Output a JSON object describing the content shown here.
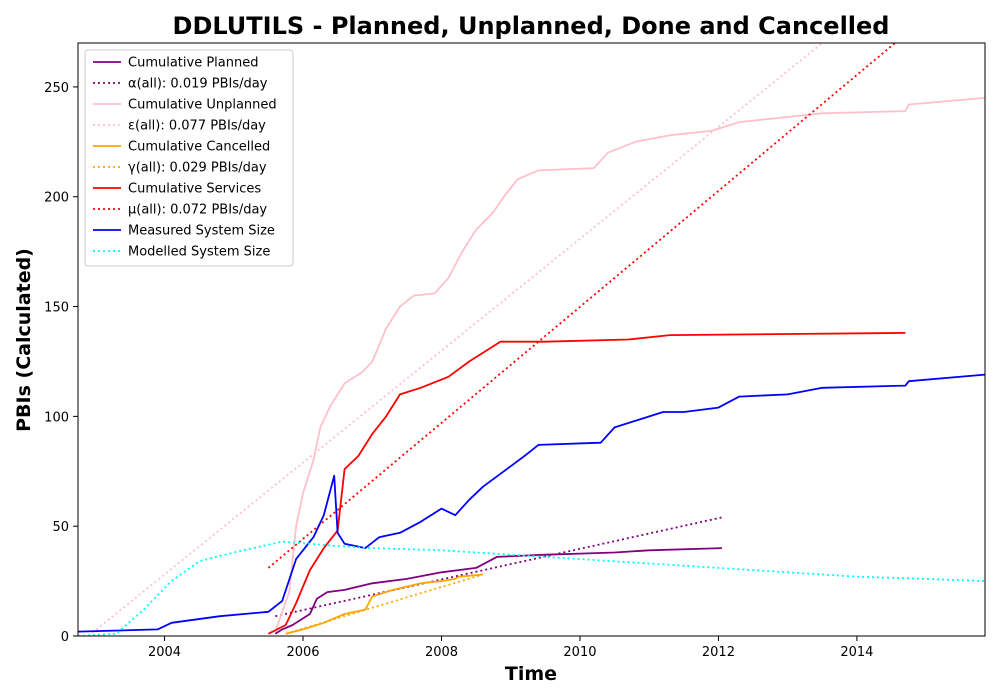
{
  "chart_data": {
    "type": "line",
    "title": "DDLUTILS - Planned, Unplanned, Done  and Cancelled",
    "xlabel": "Time",
    "ylabel": "PBIs (Calculated)",
    "xlim": [
      2002.75,
      2015.85
    ],
    "ylim": [
      0,
      270
    ],
    "x_ticks": [
      2004,
      2006,
      2008,
      2010,
      2012,
      2014
    ],
    "y_ticks": [
      0,
      50,
      100,
      150,
      200,
      250
    ],
    "grid": false,
    "legend": "top-left",
    "series": [
      {
        "name": "Cumulative Planned",
        "color": "#800080",
        "style": "solid",
        "points": [
          [
            2005.6,
            1
          ],
          [
            2005.7,
            3
          ],
          [
            2005.85,
            5
          ],
          [
            2006.0,
            8
          ],
          [
            2006.1,
            10
          ],
          [
            2006.2,
            17
          ],
          [
            2006.35,
            20
          ],
          [
            2006.6,
            21
          ],
          [
            2007.0,
            24
          ],
          [
            2007.5,
            26
          ],
          [
            2008.0,
            29
          ],
          [
            2008.5,
            31
          ],
          [
            2008.8,
            36
          ],
          [
            2009.5,
            37
          ],
          [
            2010.0,
            37.5
          ],
          [
            2010.5,
            38
          ],
          [
            2011.0,
            39
          ],
          [
            2012.05,
            40
          ]
        ]
      },
      {
        "name": "α(all): 0.019 PBIs/day",
        "color": "#800080",
        "style": "dotted",
        "points": [
          [
            2005.6,
            9
          ],
          [
            2012.05,
            54
          ]
        ]
      },
      {
        "name": "Cumulative Unplanned",
        "color": "#ffc0cb",
        "style": "solid",
        "points": [
          [
            2005.6,
            2
          ],
          [
            2005.8,
            20
          ],
          [
            2005.9,
            50
          ],
          [
            2006.0,
            65
          ],
          [
            2006.15,
            80
          ],
          [
            2006.25,
            95
          ],
          [
            2006.4,
            105
          ],
          [
            2006.6,
            115
          ],
          [
            2006.85,
            120
          ],
          [
            2007.0,
            125
          ],
          [
            2007.2,
            140
          ],
          [
            2007.4,
            150
          ],
          [
            2007.6,
            155
          ],
          [
            2007.9,
            156
          ],
          [
            2008.1,
            163
          ],
          [
            2008.3,
            175
          ],
          [
            2008.5,
            185
          ],
          [
            2008.75,
            193
          ],
          [
            2008.9,
            200
          ],
          [
            2009.1,
            208
          ],
          [
            2009.4,
            212
          ],
          [
            2010.2,
            213
          ],
          [
            2010.4,
            220
          ],
          [
            2010.8,
            225
          ],
          [
            2011.3,
            228
          ],
          [
            2011.9,
            230
          ],
          [
            2012.3,
            234
          ],
          [
            2012.9,
            236
          ],
          [
            2013.5,
            238
          ],
          [
            2014.7,
            239
          ],
          [
            2014.75,
            242
          ],
          [
            2015.85,
            245
          ]
        ]
      },
      {
        "name": "ε(all): 0.077 PBIs/day",
        "color": "#ffc0cb",
        "style": "dotted",
        "points": [
          [
            2002.9,
            0
          ],
          [
            2013.5,
            270
          ]
        ]
      },
      {
        "name": "Cumulative Cancelled",
        "color": "#ffa500",
        "style": "solid",
        "points": [
          [
            2005.75,
            1
          ],
          [
            2006.0,
            3
          ],
          [
            2006.3,
            6
          ],
          [
            2006.6,
            10
          ],
          [
            2006.9,
            12
          ],
          [
            2007.0,
            18
          ],
          [
            2007.3,
            21
          ],
          [
            2007.7,
            24
          ],
          [
            2008.0,
            25
          ],
          [
            2008.2,
            26
          ],
          [
            2008.25,
            27
          ],
          [
            2008.6,
            28
          ]
        ]
      },
      {
        "name": "γ(all): 0.029 PBIs/day",
        "color": "#ffa500",
        "style": "dotted",
        "points": [
          [
            2005.75,
            1
          ],
          [
            2008.6,
            28
          ]
        ]
      },
      {
        "name": "Cumulative Services",
        "color": "#ff0000",
        "style": "solid",
        "points": [
          [
            2005.5,
            1
          ],
          [
            2005.75,
            5
          ],
          [
            2005.9,
            15
          ],
          [
            2006.1,
            30
          ],
          [
            2006.3,
            40
          ],
          [
            2006.5,
            48
          ],
          [
            2006.6,
            76
          ],
          [
            2006.8,
            82
          ],
          [
            2007.0,
            92
          ],
          [
            2007.2,
            100
          ],
          [
            2007.4,
            110
          ],
          [
            2007.7,
            113
          ],
          [
            2008.1,
            118
          ],
          [
            2008.4,
            125
          ],
          [
            2008.6,
            129
          ],
          [
            2008.85,
            134
          ],
          [
            2009.5,
            134
          ],
          [
            2010.7,
            135
          ],
          [
            2011.3,
            137
          ],
          [
            2014.7,
            138
          ]
        ]
      },
      {
        "name": "μ(all): 0.072 PBIs/day",
        "color": "#ff0000",
        "style": "dotted",
        "points": [
          [
            2005.5,
            31
          ],
          [
            2014.55,
            270
          ]
        ]
      },
      {
        "name": "Measured System Size",
        "color": "#0000ff",
        "style": "solid",
        "points": [
          [
            2002.75,
            2
          ],
          [
            2003.9,
            3
          ],
          [
            2004.1,
            6
          ],
          [
            2004.8,
            9
          ],
          [
            2005.5,
            11
          ],
          [
            2005.7,
            16
          ],
          [
            2005.9,
            35
          ],
          [
            2006.15,
            45
          ],
          [
            2006.3,
            55
          ],
          [
            2006.45,
            73
          ],
          [
            2006.5,
            47
          ],
          [
            2006.6,
            42
          ],
          [
            2006.9,
            40
          ],
          [
            2007.1,
            45
          ],
          [
            2007.4,
            47
          ],
          [
            2007.7,
            52
          ],
          [
            2008.0,
            58
          ],
          [
            2008.2,
            55
          ],
          [
            2008.4,
            62
          ],
          [
            2008.6,
            68
          ],
          [
            2008.9,
            75
          ],
          [
            2009.2,
            82
          ],
          [
            2009.4,
            87
          ],
          [
            2010.3,
            88
          ],
          [
            2010.5,
            95
          ],
          [
            2010.9,
            99
          ],
          [
            2011.2,
            102
          ],
          [
            2011.5,
            102
          ],
          [
            2012.0,
            104
          ],
          [
            2012.3,
            109
          ],
          [
            2013.0,
            110
          ],
          [
            2013.5,
            113
          ],
          [
            2014.7,
            114
          ],
          [
            2014.75,
            116
          ],
          [
            2015.85,
            119
          ]
        ]
      },
      {
        "name": "Modelled System Size",
        "color": "#00ffff",
        "style": "dotted",
        "points": [
          [
            2002.75,
            0
          ],
          [
            2003.3,
            1
          ],
          [
            2003.7,
            12
          ],
          [
            2004.1,
            25
          ],
          [
            2004.5,
            34
          ],
          [
            2005.0,
            38
          ],
          [
            2005.7,
            43
          ],
          [
            2006.5,
            41
          ],
          [
            2007.0,
            40
          ],
          [
            2008.0,
            39
          ],
          [
            2009.0,
            37
          ],
          [
            2010.0,
            35
          ],
          [
            2011.0,
            33
          ],
          [
            2012.0,
            31
          ],
          [
            2013.0,
            29
          ],
          [
            2014.0,
            27
          ],
          [
            2015.0,
            26
          ],
          [
            2015.85,
            25
          ]
        ]
      }
    ]
  }
}
